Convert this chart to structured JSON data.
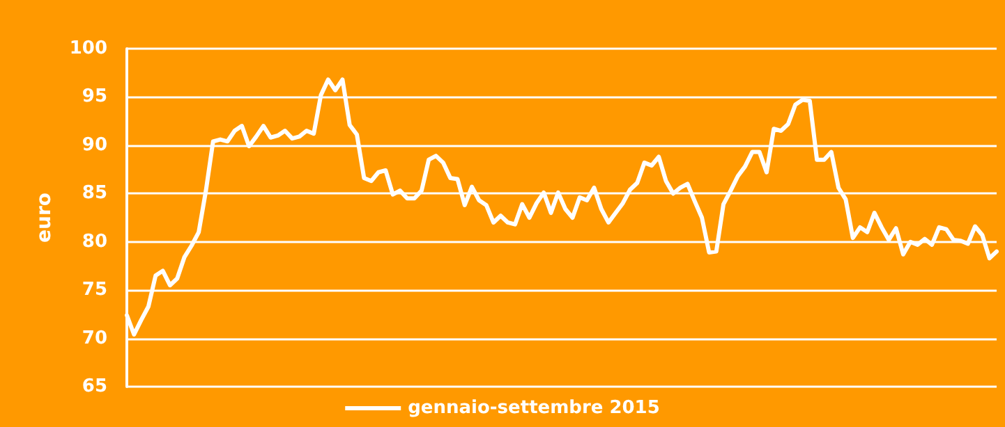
{
  "chart_data": {
    "type": "line",
    "ylabel": "euro",
    "categories": [
      null,
      null,
      null,
      null,
      null,
      null,
      null,
      null,
      null,
      null,
      null,
      null,
      null,
      null,
      null,
      null,
      null,
      null,
      null,
      null,
      null,
      null,
      null,
      null,
      null,
      null,
      null,
      null,
      null,
      null,
      null,
      null,
      null,
      null,
      null,
      null,
      null,
      null,
      null,
      null,
      null,
      null,
      null,
      null,
      null,
      null,
      null,
      null,
      null,
      null,
      null,
      null,
      null,
      null,
      null,
      null,
      null,
      null,
      null,
      null,
      null,
      null,
      null,
      null,
      null,
      null,
      null,
      null,
      null,
      null,
      null,
      null,
      null,
      null,
      null,
      null,
      null,
      null,
      null,
      null,
      null,
      null,
      null,
      null,
      null,
      null,
      null,
      null,
      null,
      null,
      null,
      null,
      null,
      null,
      null,
      null,
      null,
      null,
      null,
      null,
      null,
      null,
      null,
      null,
      null,
      null,
      null,
      null,
      null,
      null,
      null,
      null,
      null,
      null,
      null,
      null,
      null,
      null,
      null,
      null,
      null,
      null
    ],
    "series": [
      {
        "name": "gennaio-settembre 2015",
        "color": "#ffffff",
        "values": [
          72.4,
          70.4,
          71.9,
          73.3,
          76.5,
          77.0,
          75.5,
          76.2,
          78.4,
          79.6,
          81.0,
          85.3,
          90.4,
          90.6,
          90.4,
          91.5,
          92.0,
          89.9,
          90.9,
          92.0,
          90.8,
          91.0,
          91.5,
          90.7,
          90.9,
          91.5,
          91.2,
          95.2,
          96.8,
          95.7,
          96.8,
          92.1,
          91.1,
          86.6,
          86.3,
          87.2,
          87.4,
          84.9,
          85.3,
          84.5,
          84.5,
          85.3,
          88.5,
          88.9,
          88.2,
          86.6,
          86.5,
          83.8,
          85.7,
          84.3,
          83.8,
          82.0,
          82.7,
          82.0,
          81.8,
          83.9,
          82.5,
          84.0,
          85.1,
          83.0,
          85.1,
          83.4,
          82.5,
          84.6,
          84.3,
          85.6,
          83.4,
          82.0,
          83.0,
          84.0,
          85.4,
          86.1,
          88.2,
          87.9,
          88.8,
          86.3,
          85.0,
          85.6,
          86.0,
          84.2,
          82.5,
          78.9,
          79.0,
          83.9,
          85.3,
          86.8,
          87.8,
          89.3,
          89.3,
          87.2,
          91.7,
          91.5,
          92.2,
          94.2,
          94.7,
          94.6,
          88.5,
          88.5,
          89.3,
          85.6,
          84.4,
          80.4,
          81.5,
          81.0,
          83.0,
          81.5,
          80.2,
          81.4,
          78.7,
          80.0,
          79.7,
          80.3,
          79.7,
          81.5,
          81.3,
          80.2,
          80.1,
          79.8,
          81.6,
          80.7,
          78.3,
          79.0
        ]
      }
    ],
    "ylim": [
      65,
      100
    ],
    "yticks": [
      65,
      70,
      75,
      80,
      85,
      90,
      95,
      100
    ],
    "grid": "y",
    "legend": "bottom",
    "marker": "none",
    "line_style": "solid"
  }
}
